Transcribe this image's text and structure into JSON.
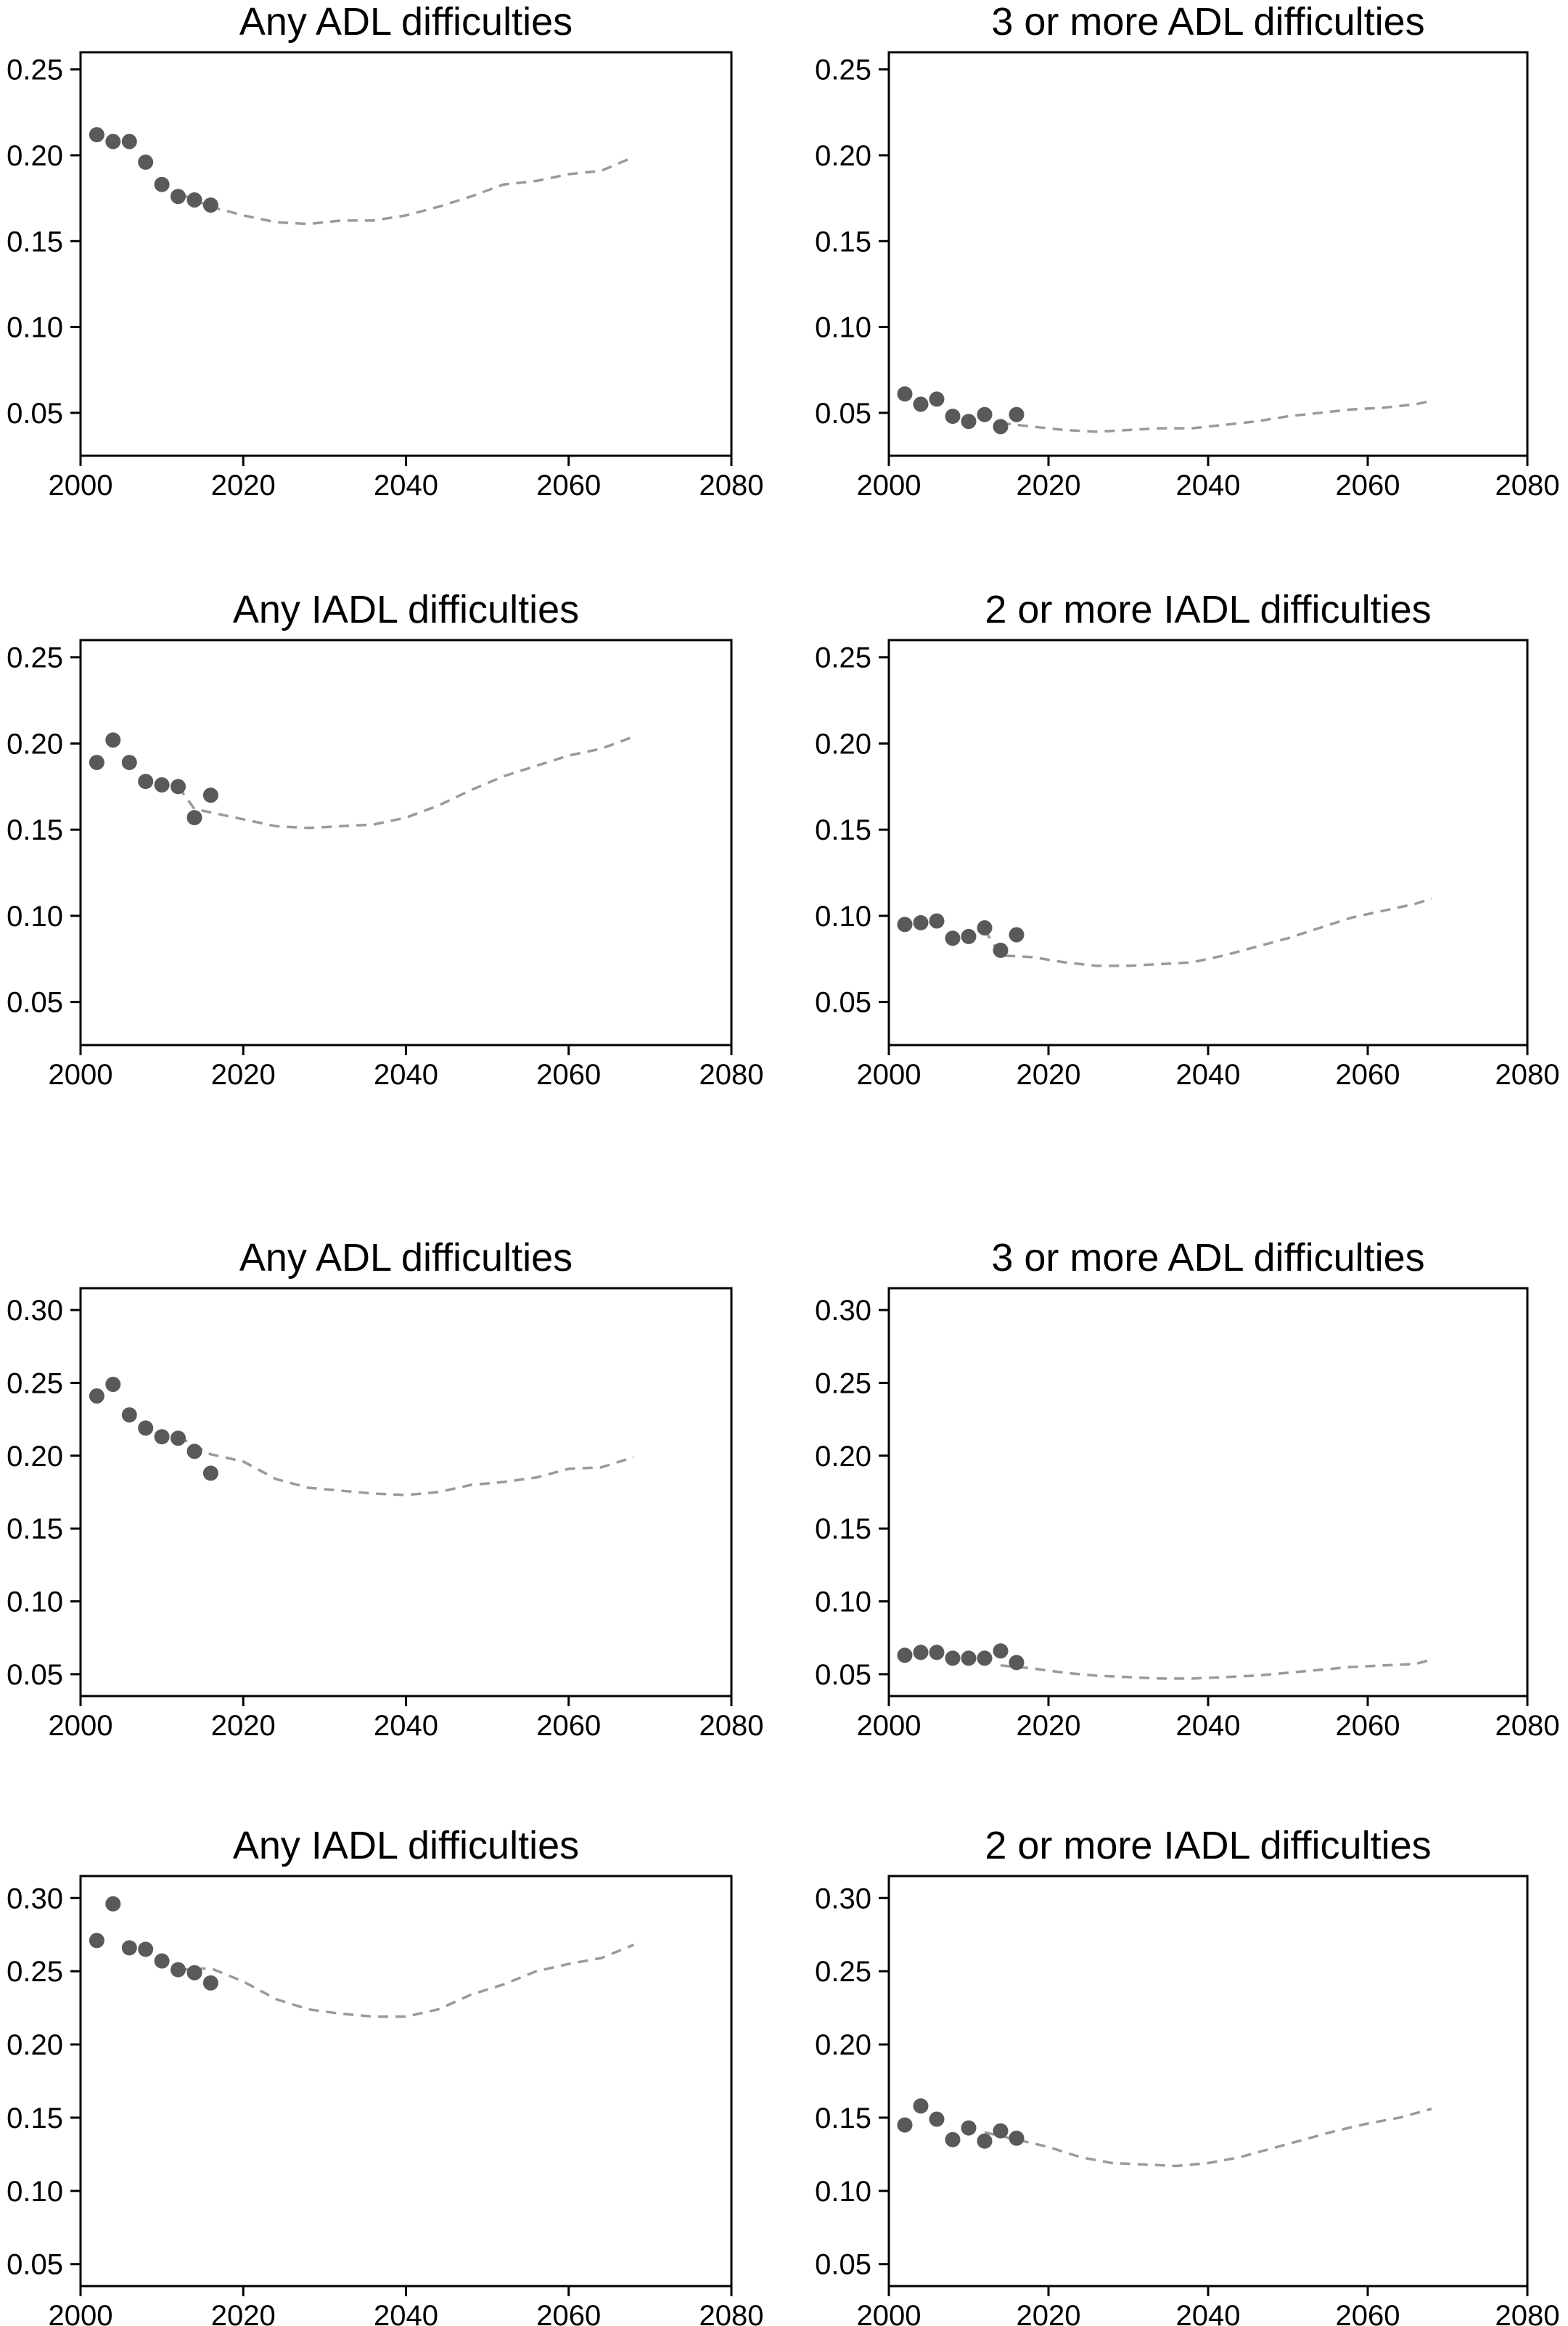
{
  "colors": {
    "observed": "#595959",
    "projection": "#9a9a9a",
    "axis": "#000000"
  },
  "chart_data": [
    {
      "type": "scatter",
      "title": "Any ADL difficulties",
      "xlim": [
        2000,
        2080
      ],
      "ylim": [
        0.025,
        0.26
      ],
      "xticks": [
        2000,
        2020,
        2040,
        2060,
        2080
      ],
      "yticks": [
        0.05,
        0.1,
        0.15,
        0.2,
        0.25
      ],
      "ytick_labels": [
        "0.05",
        "0.10",
        "0.15",
        "0.20",
        "0.25"
      ],
      "grid": false,
      "series": [
        {
          "kind": "observed-points",
          "x": [
            2002,
            2004,
            2006,
            2008,
            2010,
            2012,
            2014,
            2016
          ],
          "y": [
            0.212,
            0.208,
            0.208,
            0.196,
            0.183,
            0.176,
            0.174,
            0.171
          ]
        },
        {
          "kind": "projection-line",
          "x": [
            2012,
            2016,
            2020,
            2024,
            2028,
            2032,
            2036,
            2040,
            2044,
            2048,
            2052,
            2056,
            2060,
            2064,
            2068
          ],
          "y": [
            0.178,
            0.17,
            0.165,
            0.161,
            0.16,
            0.162,
            0.162,
            0.165,
            0.17,
            0.176,
            0.183,
            0.185,
            0.189,
            0.191,
            0.199
          ]
        }
      ]
    },
    {
      "type": "scatter",
      "title": "3 or more ADL difficulties",
      "xlim": [
        2000,
        2080
      ],
      "ylim": [
        0.025,
        0.26
      ],
      "xticks": [
        2000,
        2020,
        2040,
        2060,
        2080
      ],
      "yticks": [
        0.05,
        0.1,
        0.15,
        0.2,
        0.25
      ],
      "ytick_labels": [
        "0.05",
        "0.10",
        "0.15",
        "0.20",
        "0.25"
      ],
      "grid": false,
      "series": [
        {
          "kind": "observed-points",
          "x": [
            2002,
            2004,
            2006,
            2008,
            2010,
            2012,
            2014,
            2016
          ],
          "y": [
            0.061,
            0.055,
            0.058,
            0.048,
            0.045,
            0.049,
            0.042,
            0.049
          ]
        },
        {
          "kind": "projection-line",
          "x": [
            2014,
            2018,
            2022,
            2026,
            2030,
            2034,
            2038,
            2042,
            2046,
            2050,
            2054,
            2058,
            2062,
            2066,
            2068
          ],
          "y": [
            0.044,
            0.042,
            0.04,
            0.039,
            0.04,
            0.041,
            0.041,
            0.043,
            0.045,
            0.048,
            0.05,
            0.052,
            0.053,
            0.055,
            0.057
          ]
        }
      ]
    },
    {
      "type": "scatter",
      "title": "Any IADL difficulties",
      "xlim": [
        2000,
        2080
      ],
      "ylim": [
        0.025,
        0.26
      ],
      "xticks": [
        2000,
        2020,
        2040,
        2060,
        2080
      ],
      "yticks": [
        0.05,
        0.1,
        0.15,
        0.2,
        0.25
      ],
      "ytick_labels": [
        "0.05",
        "0.10",
        "0.15",
        "0.20",
        "0.25"
      ],
      "grid": false,
      "series": [
        {
          "kind": "observed-points",
          "x": [
            2002,
            2004,
            2006,
            2008,
            2010,
            2012,
            2014,
            2016
          ],
          "y": [
            0.189,
            0.202,
            0.189,
            0.178,
            0.176,
            0.175,
            0.157,
            0.17
          ]
        },
        {
          "kind": "projection-line",
          "x": [
            2012,
            2014,
            2016,
            2020,
            2024,
            2028,
            2032,
            2036,
            2040,
            2044,
            2048,
            2052,
            2056,
            2060,
            2064,
            2068
          ],
          "y": [
            0.175,
            0.162,
            0.16,
            0.156,
            0.152,
            0.151,
            0.152,
            0.153,
            0.157,
            0.164,
            0.173,
            0.181,
            0.187,
            0.193,
            0.197,
            0.204
          ]
        }
      ]
    },
    {
      "type": "scatter",
      "title": "2 or more IADL difficulties",
      "xlim": [
        2000,
        2080
      ],
      "ylim": [
        0.025,
        0.26
      ],
      "xticks": [
        2000,
        2020,
        2040,
        2060,
        2080
      ],
      "yticks": [
        0.05,
        0.1,
        0.15,
        0.2,
        0.25
      ],
      "ytick_labels": [
        "0.05",
        "0.10",
        "0.15",
        "0.20",
        "0.25"
      ],
      "grid": false,
      "series": [
        {
          "kind": "observed-points",
          "x": [
            2002,
            2004,
            2006,
            2008,
            2010,
            2012,
            2014,
            2016
          ],
          "y": [
            0.095,
            0.096,
            0.097,
            0.087,
            0.088,
            0.093,
            0.08,
            0.089
          ]
        },
        {
          "kind": "projection-line",
          "x": [
            2012,
            2014,
            2018,
            2022,
            2026,
            2030,
            2034,
            2038,
            2042,
            2046,
            2050,
            2054,
            2058,
            2062,
            2066,
            2068
          ],
          "y": [
            0.092,
            0.077,
            0.076,
            0.073,
            0.071,
            0.071,
            0.072,
            0.073,
            0.077,
            0.082,
            0.087,
            0.093,
            0.099,
            0.103,
            0.107,
            0.11
          ]
        }
      ]
    },
    {
      "type": "scatter",
      "title": "Any ADL difficulties",
      "xlim": [
        2000,
        2080
      ],
      "ylim": [
        0.035,
        0.315
      ],
      "xticks": [
        2000,
        2020,
        2040,
        2060,
        2080
      ],
      "yticks": [
        0.05,
        0.1,
        0.15,
        0.2,
        0.25,
        0.3
      ],
      "ytick_labels": [
        "0.05",
        "0.10",
        "0.15",
        "0.20",
        "0.25",
        "0.30"
      ],
      "grid": false,
      "series": [
        {
          "kind": "observed-points",
          "x": [
            2002,
            2004,
            2006,
            2008,
            2010,
            2012,
            2014,
            2016
          ],
          "y": [
            0.241,
            0.249,
            0.228,
            0.219,
            0.213,
            0.212,
            0.203,
            0.188
          ]
        },
        {
          "kind": "projection-line",
          "x": [
            2012,
            2016,
            2020,
            2024,
            2028,
            2032,
            2036,
            2040,
            2044,
            2048,
            2052,
            2056,
            2060,
            2064,
            2068
          ],
          "y": [
            0.213,
            0.201,
            0.196,
            0.184,
            0.178,
            0.176,
            0.174,
            0.173,
            0.175,
            0.18,
            0.182,
            0.185,
            0.191,
            0.192,
            0.199
          ]
        }
      ]
    },
    {
      "type": "scatter",
      "title": "3 or more ADL difficulties",
      "xlim": [
        2000,
        2080
      ],
      "ylim": [
        0.035,
        0.315
      ],
      "xticks": [
        2000,
        2020,
        2040,
        2060,
        2080
      ],
      "yticks": [
        0.05,
        0.1,
        0.15,
        0.2,
        0.25,
        0.3
      ],
      "ytick_labels": [
        "0.05",
        "0.10",
        "0.15",
        "0.20",
        "0.25",
        "0.30"
      ],
      "grid": false,
      "series": [
        {
          "kind": "observed-points",
          "x": [
            2002,
            2004,
            2006,
            2008,
            2010,
            2012,
            2014,
            2016
          ],
          "y": [
            0.063,
            0.065,
            0.065,
            0.061,
            0.061,
            0.061,
            0.066,
            0.058
          ]
        },
        {
          "kind": "projection-line",
          "x": [
            2014,
            2018,
            2022,
            2026,
            2030,
            2034,
            2038,
            2042,
            2046,
            2050,
            2054,
            2058,
            2062,
            2066,
            2068
          ],
          "y": [
            0.056,
            0.054,
            0.051,
            0.049,
            0.048,
            0.047,
            0.047,
            0.048,
            0.049,
            0.051,
            0.053,
            0.055,
            0.056,
            0.057,
            0.06
          ]
        }
      ]
    },
    {
      "type": "scatter",
      "title": "Any IADL difficulties",
      "xlim": [
        2000,
        2080
      ],
      "ylim": [
        0.035,
        0.315
      ],
      "xticks": [
        2000,
        2020,
        2040,
        2060,
        2080
      ],
      "yticks": [
        0.05,
        0.1,
        0.15,
        0.2,
        0.25,
        0.3
      ],
      "ytick_labels": [
        "0.05",
        "0.10",
        "0.15",
        "0.20",
        "0.25",
        "0.30"
      ],
      "grid": false,
      "series": [
        {
          "kind": "observed-points",
          "x": [
            2002,
            2004,
            2006,
            2008,
            2010,
            2012,
            2014,
            2016
          ],
          "y": [
            0.271,
            0.296,
            0.266,
            0.265,
            0.257,
            0.251,
            0.249,
            0.242
          ]
        },
        {
          "kind": "projection-line",
          "x": [
            2012,
            2016,
            2020,
            2024,
            2028,
            2032,
            2036,
            2040,
            2044,
            2048,
            2052,
            2056,
            2060,
            2064,
            2068
          ],
          "y": [
            0.251,
            0.252,
            0.243,
            0.231,
            0.224,
            0.221,
            0.219,
            0.219,
            0.224,
            0.234,
            0.241,
            0.25,
            0.255,
            0.259,
            0.268
          ]
        }
      ]
    },
    {
      "type": "scatter",
      "title": "2 or more IADL difficulties",
      "xlim": [
        2000,
        2080
      ],
      "ylim": [
        0.035,
        0.315
      ],
      "xticks": [
        2000,
        2020,
        2040,
        2060,
        2080
      ],
      "yticks": [
        0.05,
        0.1,
        0.15,
        0.2,
        0.25,
        0.3
      ],
      "ytick_labels": [
        "0.05",
        "0.10",
        "0.15",
        "0.20",
        "0.25",
        "0.30"
      ],
      "grid": false,
      "series": [
        {
          "kind": "observed-points",
          "x": [
            2002,
            2004,
            2006,
            2008,
            2010,
            2012,
            2014,
            2016
          ],
          "y": [
            0.145,
            0.158,
            0.149,
            0.135,
            0.143,
            0.134,
            0.141,
            0.136
          ]
        },
        {
          "kind": "projection-line",
          "x": [
            2012,
            2016,
            2020,
            2024,
            2028,
            2032,
            2036,
            2040,
            2044,
            2048,
            2052,
            2056,
            2060,
            2064,
            2068
          ],
          "y": [
            0.14,
            0.135,
            0.13,
            0.123,
            0.119,
            0.118,
            0.117,
            0.119,
            0.123,
            0.129,
            0.135,
            0.141,
            0.146,
            0.15,
            0.156
          ]
        }
      ]
    }
  ]
}
